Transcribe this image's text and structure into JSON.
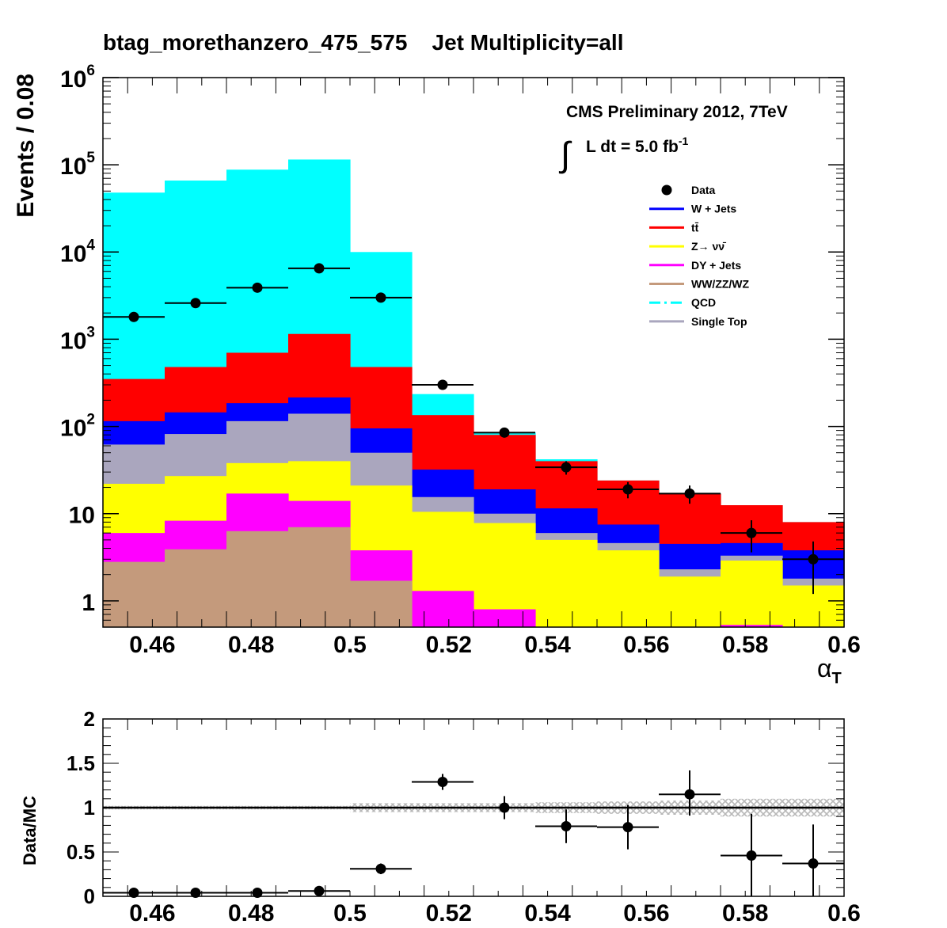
{
  "chart_data": [
    {
      "type": "bar",
      "stacked": true,
      "log_y": true,
      "title": "btag_morethanzero_475_575    Jet Multiplicity=all",
      "xlabel": "α",
      "xlabel_sub": "T",
      "ylabel": "Events / 0.08",
      "xlim": [
        0.45,
        0.6
      ],
      "ylim": [
        0.5,
        1000000
      ],
      "grid": false,
      "legend_position": "top-right",
      "annotation": {
        "line1": "CMS Preliminary 2012, 7TeV",
        "lumi_main": "L dt = 5.0 fb",
        "lumi_exp": "-1"
      },
      "x_ticks": [
        {
          "value": 0.46,
          "label": "0.46"
        },
        {
          "value": 0.48,
          "label": "0.48"
        },
        {
          "value": 0.5,
          "label": "0.5"
        },
        {
          "value": 0.52,
          "label": "0.52"
        },
        {
          "value": 0.54,
          "label": "0.54"
        },
        {
          "value": 0.56,
          "label": "0.56"
        },
        {
          "value": 0.58,
          "label": "0.58"
        },
        {
          "value": 0.6,
          "label": "0.6"
        }
      ],
      "y_ticks": [
        {
          "value": 1,
          "base": "1",
          "exp": ""
        },
        {
          "value": 10,
          "base": "10",
          "exp": ""
        },
        {
          "value": 100,
          "base": "10",
          "exp": "2"
        },
        {
          "value": 1000,
          "base": "10",
          "exp": "3"
        },
        {
          "value": 10000,
          "base": "10",
          "exp": "4"
        },
        {
          "value": 100000,
          "base": "10",
          "exp": "5"
        },
        {
          "value": 1000000,
          "base": "10",
          "exp": "6"
        }
      ],
      "bin_edges": [
        0.45,
        0.4625,
        0.475,
        0.4875,
        0.5,
        0.5125,
        0.525,
        0.5375,
        0.55,
        0.5625,
        0.575,
        0.5875,
        0.6
      ],
      "stack_order_bottom_to_top": [
        "WW/ZZ/WZ",
        "DY + Jets",
        "Z→ νν̄",
        "Single Top",
        "W + Jets",
        "tt̄",
        "QCD"
      ],
      "series": [
        {
          "name": "Data",
          "color": "#000000",
          "kind": "points",
          "x": [
            0.45625,
            0.46875,
            0.48125,
            0.49375,
            0.50625,
            0.51875,
            0.53125,
            0.54375,
            0.55625,
            0.56875,
            0.58125,
            0.59375
          ],
          "values": [
            1800,
            2600,
            3900,
            6500,
            3000,
            300,
            85,
            34,
            19,
            17,
            6,
            3
          ],
          "err_low": [
            40,
            50,
            60,
            80,
            55,
            17,
            9,
            6,
            4,
            4,
            2.4,
            1.8
          ],
          "err_high": [
            40,
            50,
            60,
            80,
            55,
            17,
            9,
            6,
            4,
            4,
            2.4,
            1.8
          ]
        },
        {
          "name": "W + Jets",
          "color": "#0000ff",
          "kind": "stack",
          "cumulative": [
            115,
            145,
            185,
            215,
            95,
            32,
            19,
            11.5,
            7.5,
            4.5,
            4.6,
            3.8
          ]
        },
        {
          "name": "tt̄",
          "color": "#ff0000",
          "kind": "stack",
          "cumulative": [
            350,
            480,
            700,
            1150,
            480,
            135,
            80,
            40,
            24,
            17,
            12.5,
            8
          ]
        },
        {
          "name": "Z→ νν̄",
          "color": "#ffff00",
          "kind": "stack",
          "cumulative": [
            22,
            27,
            38,
            40,
            21,
            10.5,
            7.8,
            5,
            3.8,
            1.9,
            2.9,
            1.5
          ]
        },
        {
          "name": "DY + Jets",
          "color": "#ff00ff",
          "kind": "stack",
          "cumulative": [
            6,
            8.3,
            17,
            14,
            3.8,
            1.3,
            0.8,
            0.5,
            0.5,
            0.5,
            0.53,
            0.5
          ]
        },
        {
          "name": "WW/ZZ/WZ",
          "color": "#c49a7c",
          "kind": "stack",
          "cumulative": [
            2.8,
            3.9,
            6.3,
            7,
            1.7,
            0.5,
            0.5,
            0.5,
            0.5,
            0.5,
            0.5,
            0.5
          ]
        },
        {
          "name": "QCD",
          "color": "#00ffff",
          "kind": "stack",
          "cumulative": [
            48000,
            66000,
            88000,
            115000,
            10000,
            235,
            85,
            42,
            24,
            17,
            12.5,
            8
          ]
        },
        {
          "name": "Single Top",
          "color": "#aaa6be",
          "kind": "stack",
          "cumulative": [
            62,
            82,
            115,
            140,
            50,
            15.5,
            10,
            6,
            4.6,
            2.3,
            3.3,
            1.8
          ]
        }
      ]
    },
    {
      "type": "scatter",
      "ylabel": "Data/MC",
      "xlim": [
        0.45,
        0.6
      ],
      "ylim": [
        0,
        2
      ],
      "reference_line": 1,
      "x_ticks": [
        {
          "value": 0.46,
          "label": "0.46"
        },
        {
          "value": 0.48,
          "label": "0.48"
        },
        {
          "value": 0.5,
          "label": "0.5"
        },
        {
          "value": 0.52,
          "label": "0.52"
        },
        {
          "value": 0.54,
          "label": "0.54"
        },
        {
          "value": 0.56,
          "label": "0.56"
        },
        {
          "value": 0.58,
          "label": "0.58"
        },
        {
          "value": 0.6,
          "label": "0.6"
        }
      ],
      "y_ticks": [
        {
          "value": 0,
          "label": "0"
        },
        {
          "value": 0.5,
          "label": "0.5"
        },
        {
          "value": 1,
          "label": "1"
        },
        {
          "value": 1.5,
          "label": "1.5"
        },
        {
          "value": 2,
          "label": "2"
        }
      ],
      "bin_edges": [
        0.45,
        0.4625,
        0.475,
        0.4875,
        0.5,
        0.5125,
        0.525,
        0.5375,
        0.55,
        0.5625,
        0.575,
        0.5875,
        0.6
      ],
      "mc_uncertainty": [
        0.02,
        0.02,
        0.02,
        0.02,
        0.05,
        0.05,
        0.05,
        0.06,
        0.07,
        0.08,
        0.1,
        0.1
      ],
      "x": [
        0.45625,
        0.46875,
        0.48125,
        0.49375,
        0.50625,
        0.51875,
        0.53125,
        0.54375,
        0.55625,
        0.56875,
        0.58125,
        0.59375
      ],
      "values": [
        0.04,
        0.04,
        0.04,
        0.06,
        0.31,
        1.29,
        1.0,
        0.79,
        0.78,
        1.15,
        0.46,
        0.37
      ],
      "err_low": [
        0.01,
        0.01,
        0.01,
        0.01,
        0.06,
        0.09,
        0.13,
        0.19,
        0.25,
        0.24,
        0.47,
        0.37
      ],
      "err_high": [
        0.01,
        0.01,
        0.01,
        0.01,
        0.06,
        0.09,
        0.13,
        0.19,
        0.25,
        0.27,
        0.47,
        0.44
      ]
    }
  ]
}
